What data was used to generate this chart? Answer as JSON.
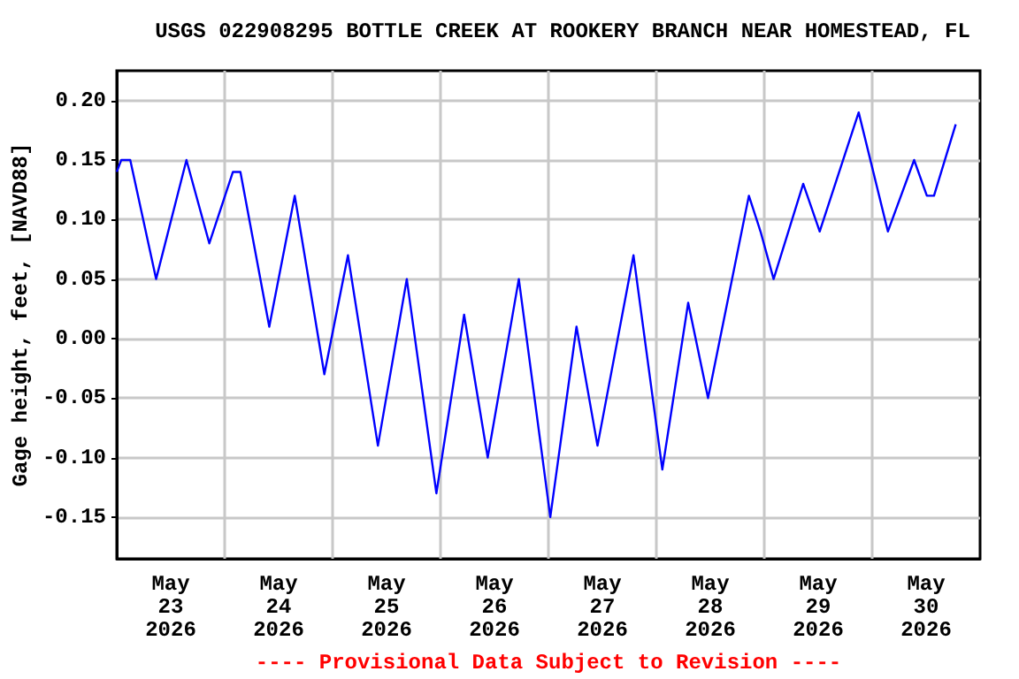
{
  "chart_data": {
    "type": "line",
    "title": "USGS 022908295 BOTTLE CREEK AT ROOKERY BRANCH NEAR HOMESTEAD, FL",
    "ylabel": "Gage height, feet, [NAVD88]",
    "annotations": [
      "---- Provisional Data Subject to Revision ----"
    ],
    "series": [
      {
        "color": "#0000ff",
        "x": [
          "2026-05-23T00:00",
          "2026-05-23T01:00",
          "2026-05-23T03:00",
          "2026-05-23T08:45",
          "2026-05-23T15:30",
          "2026-05-23T20:35",
          "2026-05-24T01:50",
          "2026-05-24T03:30",
          "2026-05-24T09:55",
          "2026-05-24T15:35",
          "2026-05-24T22:10",
          "2026-05-25T03:25",
          "2026-05-25T10:05",
          "2026-05-25T16:30",
          "2026-05-25T23:05",
          "2026-05-26T05:15",
          "2026-05-26T10:30",
          "2026-05-26T17:25",
          "2026-05-27T00:25",
          "2026-05-27T06:15",
          "2026-05-27T10:55",
          "2026-05-27T18:55",
          "2026-05-28T01:20",
          "2026-05-28T07:05",
          "2026-05-28T11:30",
          "2026-05-28T20:35",
          "2026-05-28T23:10",
          "2026-05-29T02:05",
          "2026-05-29T08:40",
          "2026-05-29T12:20",
          "2026-05-29T21:00",
          "2026-05-30T03:30",
          "2026-05-30T09:20",
          "2026-05-30T12:10",
          "2026-05-30T13:45",
          "2026-05-30T18:35"
        ],
        "values": [
          0.14,
          0.15,
          0.15,
          0.05,
          0.15,
          0.08,
          0.14,
          0.14,
          0.01,
          0.12,
          -0.03,
          0.07,
          -0.09,
          0.05,
          -0.13,
          0.02,
          -0.1,
          0.05,
          -0.15,
          0.01,
          -0.09,
          0.07,
          -0.11,
          0.03,
          -0.05,
          0.12,
          0.09,
          0.05,
          0.13,
          0.09,
          0.19,
          0.09,
          0.15,
          0.12,
          0.12,
          0.18
        ]
      }
    ],
    "xlim": [
      "2026-05-23T00:00",
      "2026-05-31T00:00"
    ],
    "xticks": [
      {
        "value": "2026-05-23T12:00",
        "label": "May\n23\n2026"
      },
      {
        "value": "2026-05-24T00:00",
        "label": null
      },
      {
        "value": "2026-05-24T12:00",
        "label": "May\n24\n2026"
      },
      {
        "value": "2026-05-25T00:00",
        "label": null
      },
      {
        "value": "2026-05-25T12:00",
        "label": "May\n25\n2026"
      },
      {
        "value": "2026-05-26T00:00",
        "label": null
      },
      {
        "value": "2026-05-26T12:00",
        "label": "May\n26\n2026"
      },
      {
        "value": "2026-05-27T00:00",
        "label": null
      },
      {
        "value": "2026-05-27T12:00",
        "label": "May\n27\n2026"
      },
      {
        "value": "2026-05-28T00:00",
        "label": null
      },
      {
        "value": "2026-05-28T12:00",
        "label": "May\n28\n2026"
      },
      {
        "value": "2026-05-29T00:00",
        "label": null
      },
      {
        "value": "2026-05-29T12:00",
        "label": "May\n29\n2026"
      },
      {
        "value": "2026-05-30T00:00",
        "label": null
      },
      {
        "value": "2026-05-30T12:00",
        "label": "May\n30\n2026"
      }
    ],
    "ylim": [
      -0.185,
      0.225
    ],
    "yticks": [
      {
        "value": -0.15,
        "label": "-0.15"
      },
      {
        "value": -0.1,
        "label": "-0.10"
      },
      {
        "value": -0.05,
        "label": "-0.05"
      },
      {
        "value": 0,
        "label": "0.00"
      },
      {
        "value": 0.05,
        "label": "0.05"
      },
      {
        "value": 0.1,
        "label": "0.10"
      },
      {
        "value": 0.15,
        "label": "0.15"
      },
      {
        "value": 0.2,
        "label": "0.20"
      }
    ],
    "grid": true,
    "marker": "none",
    "line_style": "solid"
  }
}
